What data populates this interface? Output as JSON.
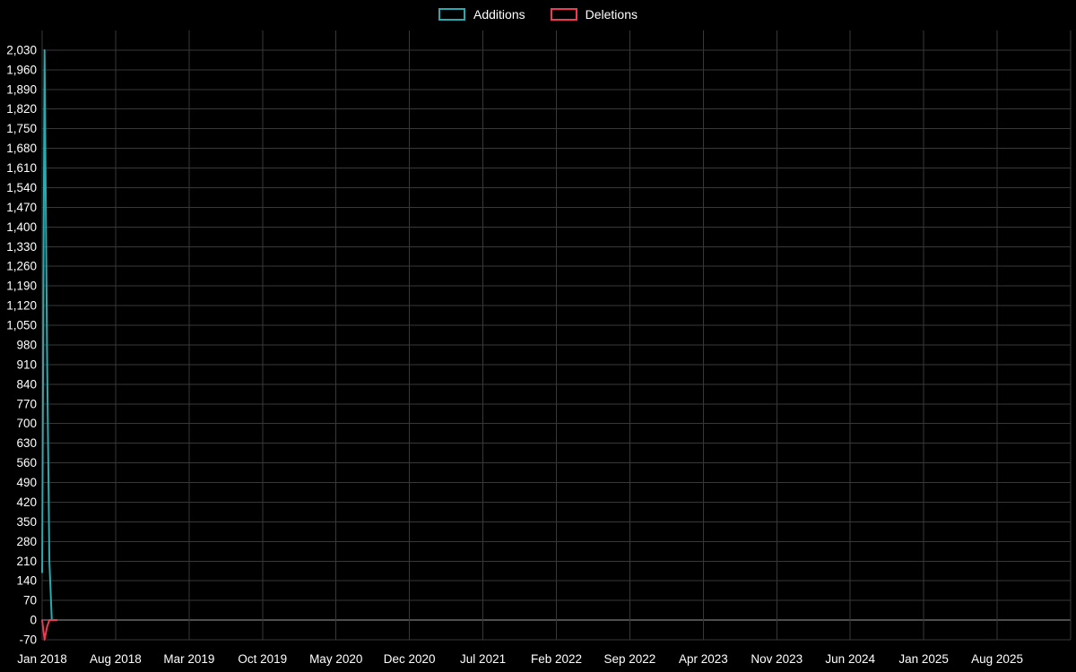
{
  "chart_data": {
    "type": "line",
    "title": "",
    "legend_position": "top-center",
    "background": "#000000",
    "text_color": "#ffffff",
    "grid": {
      "show": true,
      "color": "#383838",
      "zero_line_color": "#9c9c9c"
    },
    "x_axis": {
      "tick_labels": [
        "Jan 2018",
        "Aug 2018",
        "Mar 2019",
        "Oct 2019",
        "May 2020",
        "Dec 2020",
        "Jul 2021",
        "Feb 2022",
        "Sep 2022",
        "Apr 2023",
        "Nov 2023",
        "Jun 2024",
        "Jan 2025",
        "Aug 2025"
      ],
      "unit": "weeks since Jan 2018",
      "range_weeks": [
        0,
        426
      ],
      "tick_interval_weeks": 30.43
    },
    "y_axis": {
      "tick_values": [
        -70,
        0,
        70,
        140,
        210,
        280,
        350,
        420,
        490,
        560,
        630,
        700,
        770,
        840,
        910,
        980,
        1050,
        1120,
        1190,
        1260,
        1330,
        1400,
        1470,
        1540,
        1610,
        1680,
        1750,
        1820,
        1890,
        1960,
        2030
      ],
      "range": [
        -70,
        2100
      ]
    },
    "series": [
      {
        "name": "Additions",
        "color": "#27aab0",
        "points_weeks_value": [
          [
            0,
            170
          ],
          [
            1,
            2030
          ],
          [
            2,
            980
          ],
          [
            3,
            210
          ],
          [
            4,
            0
          ],
          [
            6,
            0
          ]
        ]
      },
      {
        "name": "Deletions",
        "color": "#ee3b52",
        "points_weeks_value": [
          [
            0,
            0
          ],
          [
            1,
            -70
          ],
          [
            2,
            -25
          ],
          [
            3,
            0
          ],
          [
            6,
            0
          ]
        ]
      }
    ]
  }
}
